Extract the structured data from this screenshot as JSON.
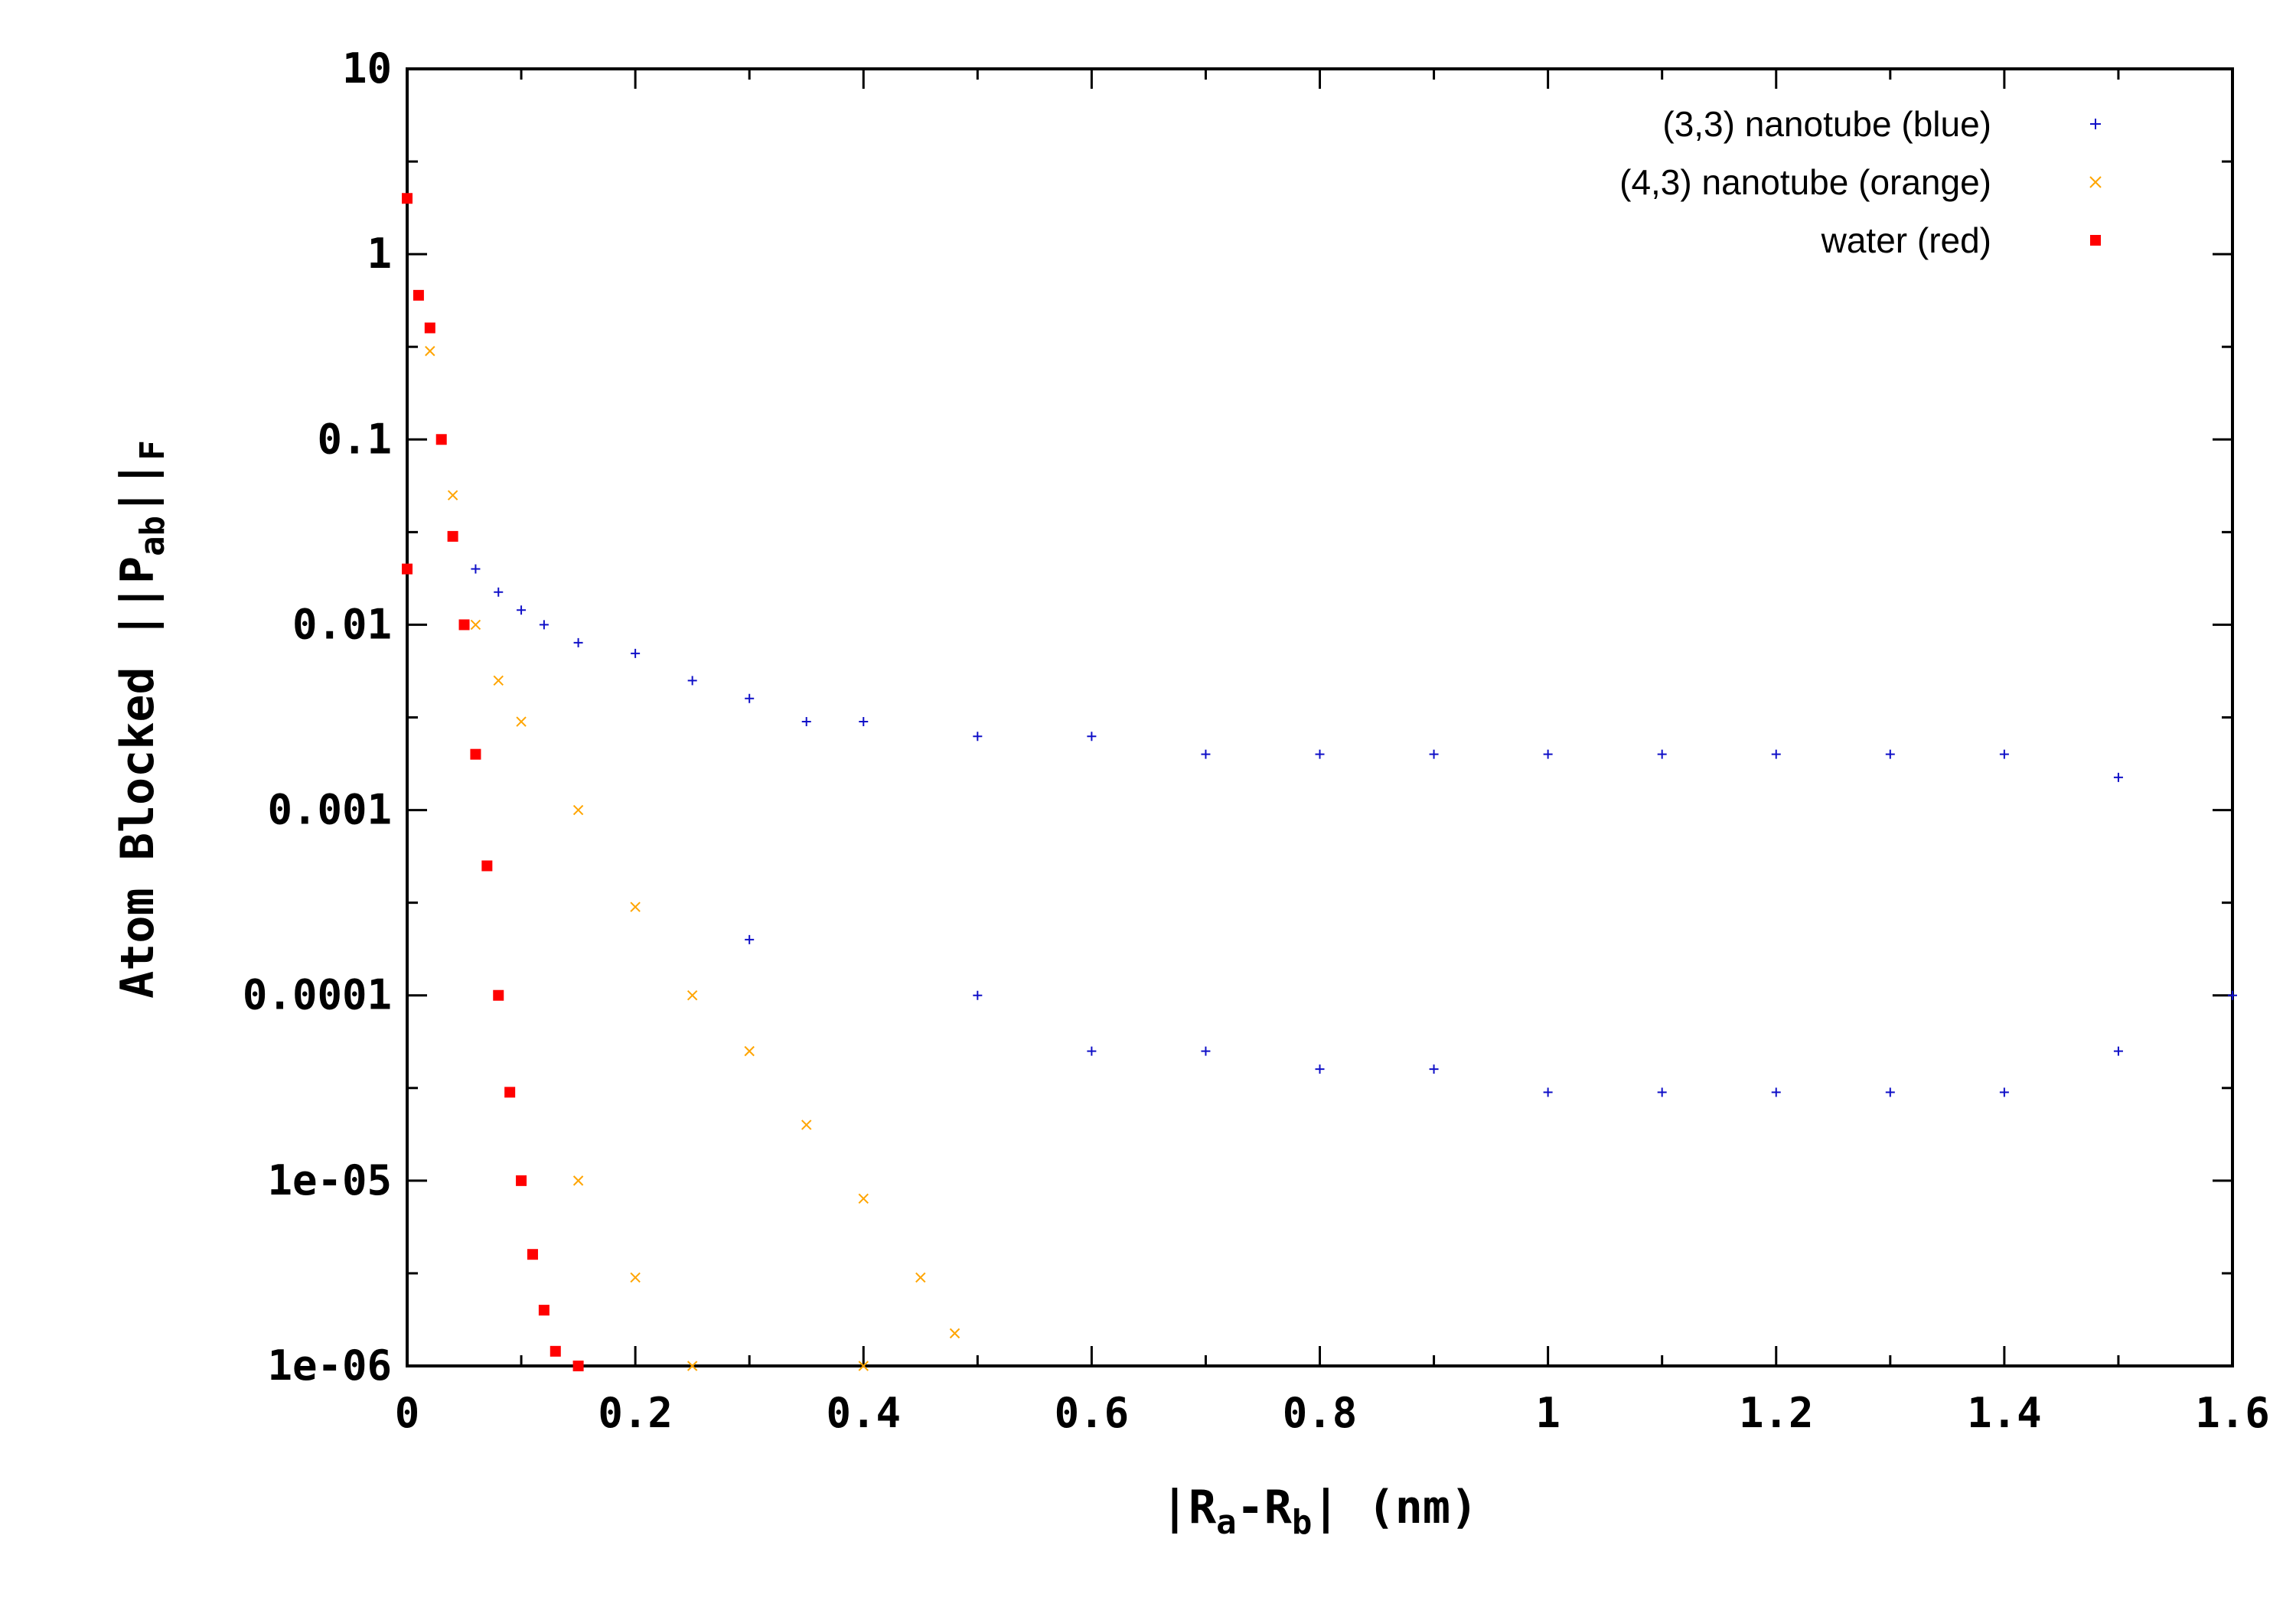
{
  "chart_data": {
    "type": "scatter",
    "xlabel": {
      "base1": "|R",
      "sub1": "a",
      "mid": "-R",
      "sub2": "b",
      "tail": "|  (nm)"
    },
    "ylabel": {
      "base1": "Atom Blocked ||P",
      "sub1": "ab",
      "mid": "||",
      "sub2": "F"
    },
    "xlim": [
      0,
      1.6
    ],
    "ylim": [
      1e-06,
      10
    ],
    "y_scale": "log",
    "x_ticks": [
      "0",
      "0.2",
      "0.4",
      "0.6",
      "0.8",
      "1",
      "1.2",
      "1.4",
      "1.6"
    ],
    "x_tick_values": [
      0,
      0.2,
      0.4,
      0.6,
      0.8,
      1.0,
      1.2,
      1.4,
      1.6
    ],
    "y_ticks": [
      "10",
      "1",
      "0.1",
      "0.01",
      "0.001",
      "0.0001",
      "1e-05",
      "1e-06"
    ],
    "y_tick_values": [
      10,
      1,
      0.1,
      0.01,
      0.001,
      0.0001,
      1e-05,
      1e-06
    ],
    "legend_position": "top-right",
    "series": [
      {
        "name": "(3,3) nanotube (blue)",
        "color": "#1010c8",
        "marker": "plus",
        "points": [
          [
            0.06,
            0.02
          ],
          [
            0.08,
            0.015
          ],
          [
            0.1,
            0.012
          ],
          [
            0.12,
            0.01
          ],
          [
            0.15,
            0.008
          ],
          [
            0.2,
            0.007
          ],
          [
            0.25,
            0.005
          ],
          [
            0.3,
            0.004
          ],
          [
            0.35,
            0.003
          ],
          [
            0.4,
            0.003
          ],
          [
            0.5,
            0.0025
          ],
          [
            0.6,
            0.0025
          ],
          [
            0.7,
            0.002
          ],
          [
            0.8,
            0.002
          ],
          [
            0.9,
            0.002
          ],
          [
            1.0,
            0.002
          ],
          [
            1.1,
            0.002
          ],
          [
            1.2,
            0.002
          ],
          [
            1.3,
            0.002
          ],
          [
            1.4,
            0.002
          ],
          [
            1.5,
            0.0015
          ],
          [
            0.3,
            0.0002
          ],
          [
            0.5,
            0.0001
          ],
          [
            0.6,
            5e-05
          ],
          [
            0.7,
            5e-05
          ],
          [
            0.8,
            4e-05
          ],
          [
            0.9,
            4e-05
          ],
          [
            1.0,
            3e-05
          ],
          [
            1.1,
            3e-05
          ],
          [
            1.2,
            3e-05
          ],
          [
            1.3,
            3e-05
          ],
          [
            1.4,
            3e-05
          ],
          [
            1.5,
            5e-05
          ],
          [
            1.6,
            0.0001
          ]
        ]
      },
      {
        "name": "(4,3) nanotube (orange)",
        "color": "#ffa500",
        "marker": "cross",
        "points": [
          [
            0.02,
            0.3
          ],
          [
            0.04,
            0.05
          ],
          [
            0.06,
            0.01
          ],
          [
            0.08,
            0.005
          ],
          [
            0.1,
            0.003
          ],
          [
            0.15,
            0.001
          ],
          [
            0.2,
            0.0003
          ],
          [
            0.25,
            0.0001
          ],
          [
            0.3,
            5e-05
          ],
          [
            0.35,
            2e-05
          ],
          [
            0.4,
            8e-06
          ],
          [
            0.45,
            3e-06
          ],
          [
            0.48,
            1.5e-06
          ],
          [
            0.15,
            1e-05
          ],
          [
            0.2,
            3e-06
          ],
          [
            0.25,
            1e-06
          ],
          [
            0.4,
            1e-06
          ]
        ]
      },
      {
        "name": "water (red)",
        "color": "#ff0000",
        "marker": "square",
        "points": [
          [
            0.0,
            2.0
          ],
          [
            0.0,
            0.02
          ],
          [
            0.01,
            0.6
          ],
          [
            0.02,
            0.4
          ],
          [
            0.03,
            0.1
          ],
          [
            0.04,
            0.03
          ],
          [
            0.05,
            0.01
          ],
          [
            0.06,
            0.002
          ],
          [
            0.07,
            0.0005
          ],
          [
            0.08,
            0.0001
          ],
          [
            0.09,
            3e-05
          ],
          [
            0.1,
            1e-05
          ],
          [
            0.11,
            4e-06
          ],
          [
            0.12,
            2e-06
          ],
          [
            0.13,
            1.2e-06
          ],
          [
            0.15,
            1e-06
          ]
        ]
      }
    ]
  }
}
